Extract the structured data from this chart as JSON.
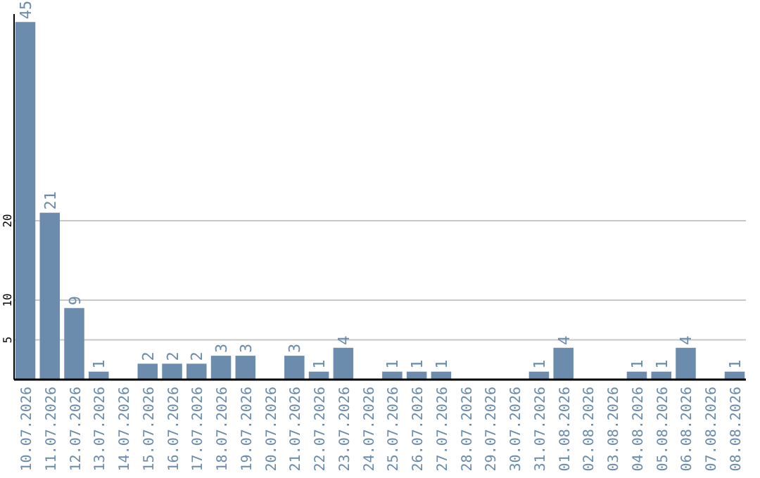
{
  "chart_data": {
    "type": "bar",
    "categories": [
      "10.07.2026",
      "11.07.2026",
      "12.07.2026",
      "13.07.2026",
      "14.07.2026",
      "15.07.2026",
      "16.07.2026",
      "17.07.2026",
      "18.07.2026",
      "19.07.2026",
      "20.07.2026",
      "21.07.2026",
      "22.07.2026",
      "23.07.2026",
      "24.07.2026",
      "25.07.2026",
      "26.07.2026",
      "27.07.2026",
      "28.07.2026",
      "29.07.2026",
      "30.07.2026",
      "31.07.2026",
      "01.08.2026",
      "02.08.2026",
      "03.08.2026",
      "04.08.2026",
      "05.08.2026",
      "06.08.2026",
      "07.08.2026",
      "08.08.2026"
    ],
    "values": [
      45,
      21,
      9,
      1,
      null,
      2,
      2,
      2,
      3,
      3,
      null,
      3,
      1,
      4,
      null,
      1,
      1,
      1,
      null,
      null,
      null,
      1,
      4,
      null,
      null,
      1,
      1,
      4,
      null,
      1
    ],
    "color": "#6b8cac",
    "ylim": [
      0,
      46
    ],
    "yticks": [
      5,
      10,
      20
    ],
    "grid": "y",
    "data_labels": true
  }
}
